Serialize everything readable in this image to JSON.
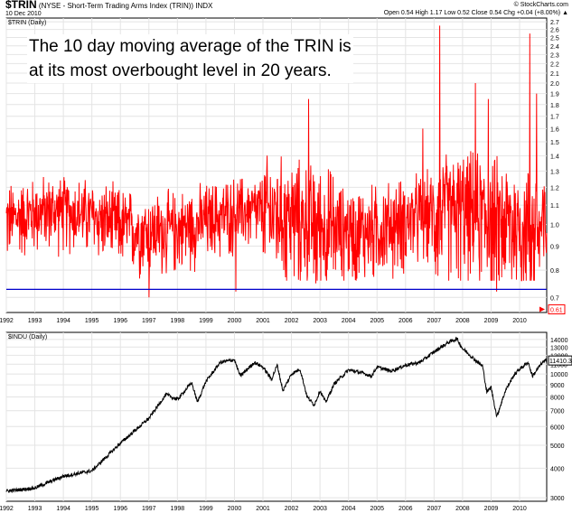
{
  "header": {
    "symbol": "$TRIN",
    "description": "(NYSE - Short-Term Trading Arms Index (TRIN)) INDX",
    "date": "10 Dec 2010",
    "source": "© StockCharts.com",
    "ohlc": "Open 0.54  High 1.17  Low 0.52  Close 0.54  Chg +0.04 (+8.00%) ▲"
  },
  "annotation": {
    "line1": "The 10 day moving average of the TRIN is",
    "line2": "at its most overbought level in 20 years."
  },
  "colors": {
    "trin": "#ff0000",
    "djia": "#000000",
    "hline": "#0000cc",
    "grid": "#e4e4e4",
    "flag": "#ff0000"
  },
  "chart_data": [
    {
      "type": "line",
      "legend": "$TRIN (Daily)",
      "x_ticks": [
        "1992",
        "1993",
        "1994",
        "1995",
        "1996",
        "1997",
        "1998",
        "1999",
        "2000",
        "2001",
        "2002",
        "2003",
        "2004",
        "2005",
        "2006",
        "2007",
        "2008",
        "2009",
        "2010"
      ],
      "x_range": [
        1992.0,
        2010.95
      ],
      "y_scale": "log",
      "y_range": [
        0.65,
        2.75
      ],
      "y_ticks": [
        "0.7",
        "0.8",
        "0.9",
        "1.0",
        "1.1",
        "1.2",
        "1.3",
        "1.4",
        "1.5",
        "1.6",
        "1.7",
        "1.8",
        "1.9",
        "2.0",
        "2.1",
        "2.2",
        "2.3",
        "2.4",
        "2.5",
        "2.6",
        "2.7"
      ],
      "last_value_label": "0.61",
      "hline_value": 0.728,
      "spikes": [
        {
          "x": 1997.0,
          "y": 0.7
        },
        {
          "x": 2000.05,
          "y": 0.72
        },
        {
          "x": 2002.85,
          "y": 0.75
        },
        {
          "x": 2007.2,
          "y": 2.65
        },
        {
          "x": 2009.2,
          "y": 0.72
        },
        {
          "x": 2010.35,
          "y": 2.55
        },
        {
          "x": 2010.6,
          "y": 1.9
        },
        {
          "x": 2008.9,
          "y": 1.85
        },
        {
          "x": 2008.45,
          "y": 2.0
        },
        {
          "x": 2002.6,
          "y": 1.85
        },
        {
          "x": 2006.6,
          "y": 1.6
        }
      ]
    },
    {
      "type": "line",
      "legend": "$INDU (Daily)",
      "x_ticks": [
        "1992",
        "1993",
        "1994",
        "1995",
        "1996",
        "1997",
        "1998",
        "1999",
        "2000",
        "2001",
        "2002",
        "2003",
        "2004",
        "2005",
        "2006",
        "2007",
        "2008",
        "2009",
        "2010"
      ],
      "x_range": [
        1992.0,
        2010.95
      ],
      "y_scale": "log",
      "y_range": [
        2900,
        15000
      ],
      "y_ticks": [
        "3000",
        "4000",
        "5000",
        "6000",
        "7000",
        "8000",
        "9000",
        "10000",
        "11000",
        "12000",
        "13000",
        "14000"
      ],
      "last_value_label": "11410.32",
      "top_label": "14000",
      "series": [
        {
          "x": 1992.0,
          "y": 3200
        },
        {
          "x": 1993.0,
          "y": 3300
        },
        {
          "x": 1994.0,
          "y": 3700
        },
        {
          "x": 1995.0,
          "y": 3900
        },
        {
          "x": 1996.0,
          "y": 5100
        },
        {
          "x": 1997.0,
          "y": 6500
        },
        {
          "x": 1997.6,
          "y": 8200
        },
        {
          "x": 1998.0,
          "y": 7800
        },
        {
          "x": 1998.5,
          "y": 9200
        },
        {
          "x": 1998.7,
          "y": 7600
        },
        {
          "x": 1999.0,
          "y": 9300
        },
        {
          "x": 1999.5,
          "y": 11200
        },
        {
          "x": 2000.0,
          "y": 11500
        },
        {
          "x": 2000.2,
          "y": 9800
        },
        {
          "x": 2000.7,
          "y": 11200
        },
        {
          "x": 2001.0,
          "y": 10700
        },
        {
          "x": 2001.3,
          "y": 9500
        },
        {
          "x": 2001.5,
          "y": 10900
        },
        {
          "x": 2001.7,
          "y": 8500
        },
        {
          "x": 2002.0,
          "y": 10000
        },
        {
          "x": 2002.3,
          "y": 10500
        },
        {
          "x": 2002.55,
          "y": 8000
        },
        {
          "x": 2002.8,
          "y": 7400
        },
        {
          "x": 2003.0,
          "y": 8500
        },
        {
          "x": 2003.2,
          "y": 7600
        },
        {
          "x": 2003.5,
          "y": 9100
        },
        {
          "x": 2004.0,
          "y": 10400
        },
        {
          "x": 2004.5,
          "y": 10100
        },
        {
          "x": 2004.8,
          "y": 9800
        },
        {
          "x": 2005.0,
          "y": 10700
        },
        {
          "x": 2005.5,
          "y": 10300
        },
        {
          "x": 2006.0,
          "y": 10900
        },
        {
          "x": 2006.5,
          "y": 11200
        },
        {
          "x": 2007.0,
          "y": 12400
        },
        {
          "x": 2007.5,
          "y": 13600
        },
        {
          "x": 2007.8,
          "y": 14100
        },
        {
          "x": 2008.0,
          "y": 12800
        },
        {
          "x": 2008.2,
          "y": 12200
        },
        {
          "x": 2008.5,
          "y": 11300
        },
        {
          "x": 2008.7,
          "y": 10800
        },
        {
          "x": 2008.85,
          "y": 8400
        },
        {
          "x": 2009.0,
          "y": 8800
        },
        {
          "x": 2009.2,
          "y": 6600
        },
        {
          "x": 2009.5,
          "y": 8500
        },
        {
          "x": 2009.8,
          "y": 9900
        },
        {
          "x": 2010.0,
          "y": 10500
        },
        {
          "x": 2010.3,
          "y": 11200
        },
        {
          "x": 2010.45,
          "y": 9800
        },
        {
          "x": 2010.6,
          "y": 10400
        },
        {
          "x": 2010.8,
          "y": 11200
        },
        {
          "x": 2010.95,
          "y": 11410
        }
      ]
    }
  ]
}
